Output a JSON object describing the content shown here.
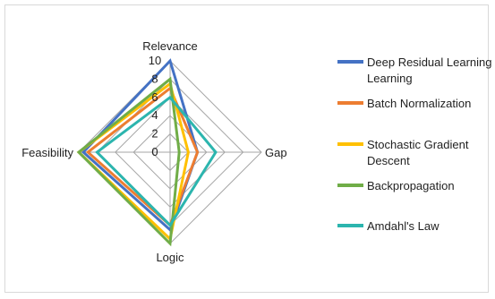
{
  "chart_data": {
    "type": "radar",
    "axes": [
      "Relevance",
      "Gap",
      "Logic",
      "Feasibility"
    ],
    "rlim": [
      0,
      10
    ],
    "ticks": [
      0,
      2,
      4,
      6,
      8,
      10
    ],
    "grid": true,
    "legend_position": "right",
    "series": [
      {
        "name": "Deep Residual Learning",
        "values": [
          10,
          3.0,
          8.5,
          9.5
        ],
        "color": "#4472C4"
      },
      {
        "name": "Batch Normalization",
        "values": [
          7.0,
          3.0,
          8.0,
          9.0
        ],
        "color": "#ED7D31"
      },
      {
        "name": "Stochastic Gradient Descent",
        "values": [
          7.5,
          2.0,
          9.5,
          10
        ],
        "color": "#FFC000"
      },
      {
        "name": "Backpropagation",
        "values": [
          8.0,
          1.0,
          10,
          10
        ],
        "color": "#70AD47"
      },
      {
        "name": "Amdahl's Law",
        "values": [
          6.0,
          5.0,
          8.0,
          8.0
        ],
        "color": "#2CB5AE"
      }
    ]
  }
}
